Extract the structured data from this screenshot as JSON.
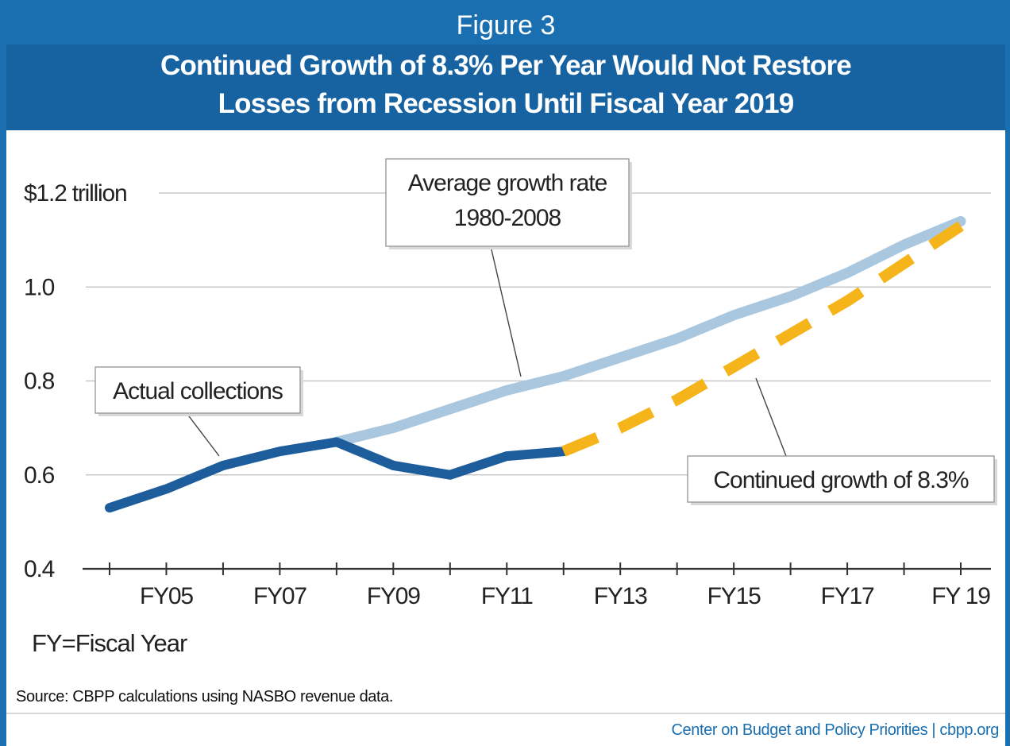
{
  "header": {
    "figure_label": "Figure 3",
    "title_line1": "Continued Growth of 8.3% Per Year Would Not Restore",
    "title_line2": "Losses from Recession Until Fiscal Year 2019"
  },
  "chart_data": {
    "type": "line",
    "title": "Continued Growth of 8.3% Per Year Would Not Restore Losses from Recession Until Fiscal Year 2019",
    "xlabel": "",
    "ylabel": "",
    "ylim": [
      0.4,
      1.2
    ],
    "ytick_labels": [
      "$1.2 trillion",
      "1.0",
      "0.8",
      "0.6",
      "0.4"
    ],
    "ytick_values": [
      1.2,
      1.0,
      0.8,
      0.6,
      0.4
    ],
    "x_tick_years": [
      2004,
      2005,
      2006,
      2007,
      2008,
      2009,
      2010,
      2011,
      2012,
      2013,
      2014,
      2015,
      2016,
      2017,
      2018,
      2019
    ],
    "x_label_years": [
      2005,
      2007,
      2009,
      2011,
      2013,
      2015,
      2017,
      2019
    ],
    "x_tick_labels": [
      "FY05",
      "FY07",
      "FY09",
      "FY11",
      "FY13",
      "FY15",
      "FY17",
      "FY 19"
    ],
    "grid": "horizontal",
    "series": [
      {
        "name": "Average growth rate 1980-2008",
        "style": "solid",
        "color": "#a9c7df",
        "x": [
          2008,
          2009,
          2010,
          2011,
          2012,
          2013,
          2014,
          2015,
          2016,
          2017,
          2018,
          2019
        ],
        "values": [
          0.67,
          0.7,
          0.74,
          0.78,
          0.81,
          0.85,
          0.89,
          0.94,
          0.98,
          1.03,
          1.09,
          1.14
        ]
      },
      {
        "name": "Actual collections",
        "style": "solid",
        "color": "#1d5d9b",
        "x": [
          2004,
          2005,
          2006,
          2007,
          2008,
          2009,
          2010,
          2011,
          2012
        ],
        "values": [
          0.53,
          0.57,
          0.62,
          0.65,
          0.67,
          0.62,
          0.6,
          0.64,
          0.65
        ]
      },
      {
        "name": "Continued growth of 8.3%",
        "style": "dashed",
        "color": "#f4b41a",
        "x": [
          2012,
          2013,
          2014,
          2015,
          2016,
          2017,
          2018,
          2019
        ],
        "values": [
          0.65,
          0.7,
          0.76,
          0.83,
          0.9,
          0.97,
          1.05,
          1.13
        ]
      }
    ],
    "annotations": [
      {
        "text_lines": [
          "Average growth rate",
          "1980-2008"
        ]
      },
      {
        "text_lines": [
          "Actual collections"
        ]
      },
      {
        "text_lines": [
          "Continued growth of 8.3%"
        ]
      }
    ]
  },
  "footnotes": {
    "fy_note": "FY=Fiscal Year",
    "source": "Source: CBPP calculations using NASBO revenue data.",
    "credit": "Center on Budget and Policy Priorities | cbpp.org"
  },
  "colors": {
    "header_blue": "#1a6fb0",
    "grid": "#c8c8c8",
    "axis": "#333333"
  }
}
